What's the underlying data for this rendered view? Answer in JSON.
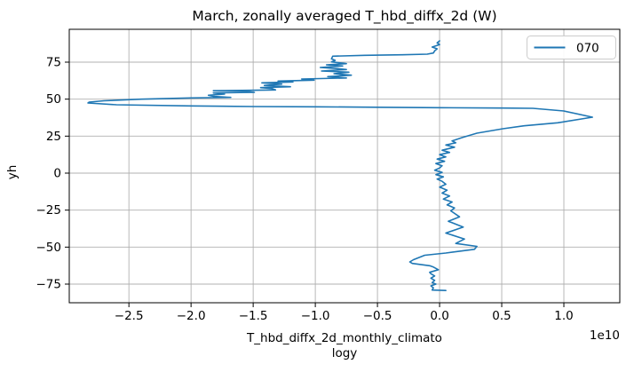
{
  "figure": {
    "title": "March, zonally averaged T_hbd_diffx_2d (W)",
    "ylabel": "yh",
    "xlabel_line1": "T_hbd_diffx_2d_monthly_climato",
    "xlabel_line2": "logy",
    "x_offset_text": "1e10",
    "legend": {
      "entries": [
        {
          "label": "070",
          "color": "#1f77b4"
        }
      ]
    }
  },
  "colors": {
    "line": "#1f77b4",
    "grid": "#b0b0b0",
    "spine": "#000000",
    "legend_border": "#cccccc",
    "background": "#ffffff"
  },
  "chart_data": {
    "type": "line",
    "title": "March, zonally averaged T_hbd_diffx_2d (W)",
    "xlabel": "T_hbd_diffx_2d_monthly_climatology",
    "ylabel": "yh",
    "x_unit": "1e10 W",
    "grid": true,
    "legend_position": "upper right",
    "xlim": [
      -2.98,
      1.45
    ],
    "ylim": [
      -87.6,
      97.2
    ],
    "x_ticks": [
      -2.5,
      -2.0,
      -1.5,
      -1.0,
      -0.5,
      0.0,
      0.5,
      1.0
    ],
    "x_tick_labels": [
      "−2.5",
      "−2.0",
      "−1.5",
      "−1.0",
      "−0.5",
      "0.0",
      "0.5",
      "1.0"
    ],
    "y_ticks": [
      75,
      50,
      25,
      0,
      -25,
      -50,
      -75
    ],
    "y_tick_labels": [
      "75",
      "50",
      "25",
      "0",
      "−25",
      "−50",
      "−75"
    ],
    "series": [
      {
        "name": "070",
        "color": "#1f77b4",
        "points": [
          [
            0.05,
            -79.3
          ],
          [
            -0.06,
            -79.0
          ],
          [
            -0.05,
            -77.5
          ],
          [
            -0.07,
            -76.2
          ],
          [
            -0.03,
            -75.0
          ],
          [
            -0.06,
            -74.0
          ],
          [
            -0.04,
            -72.5
          ],
          [
            -0.07,
            -71.0
          ],
          [
            -0.04,
            -69.5
          ],
          [
            -0.07,
            -68.0
          ],
          [
            -0.08,
            -67.0
          ],
          [
            -0.01,
            -65.3
          ],
          [
            -0.05,
            -63.5
          ],
          [
            -0.08,
            -62.6
          ],
          [
            -0.22,
            -61.0
          ],
          [
            -0.24,
            -60.0
          ],
          [
            -0.21,
            -58.5
          ],
          [
            -0.12,
            -55.5
          ],
          [
            0.05,
            -54.0
          ],
          [
            0.28,
            -51.5
          ],
          [
            0.3,
            -49.5
          ],
          [
            0.13,
            -47.5
          ],
          [
            0.2,
            -44.5
          ],
          [
            0.05,
            -40.5
          ],
          [
            0.19,
            -36.5
          ],
          [
            0.07,
            -32.5
          ],
          [
            0.16,
            -29.5
          ],
          [
            0.09,
            -25.5
          ],
          [
            0.12,
            -23.5
          ],
          [
            0.06,
            -21.5
          ],
          [
            0.1,
            -19.5
          ],
          [
            0.03,
            -17.5
          ],
          [
            0.08,
            -15.5
          ],
          [
            0.02,
            -13.5
          ],
          [
            0.06,
            -11.5
          ],
          [
            0.0,
            -9.5
          ],
          [
            0.05,
            -7.5
          ],
          [
            0.02,
            -5.5
          ],
          [
            -0.02,
            -4.0
          ],
          [
            0.03,
            -2.5
          ],
          [
            -0.03,
            -1.0
          ],
          [
            0.02,
            0.5
          ],
          [
            -0.04,
            2.0
          ],
          [
            0.0,
            3.5
          ],
          [
            0.02,
            5.0
          ],
          [
            -0.03,
            6.5
          ],
          [
            0.04,
            8.0
          ],
          [
            -0.02,
            9.5
          ],
          [
            0.05,
            11.0
          ],
          [
            0.0,
            12.5
          ],
          [
            0.08,
            14.0
          ],
          [
            0.02,
            15.5
          ],
          [
            0.12,
            17.5
          ],
          [
            0.05,
            19.0
          ],
          [
            0.13,
            20.5
          ],
          [
            0.1,
            21.8
          ],
          [
            0.18,
            24.0
          ],
          [
            0.3,
            27.0
          ],
          [
            0.51,
            30.0
          ],
          [
            0.68,
            32.0
          ],
          [
            0.95,
            34.0
          ],
          [
            1.23,
            37.8
          ],
          [
            1.0,
            42.0
          ],
          [
            0.75,
            43.8
          ],
          [
            0.5,
            44.0
          ],
          [
            0.0,
            44.2
          ],
          [
            -0.5,
            44.5
          ],
          [
            -1.0,
            44.8
          ],
          [
            -1.5,
            45.0
          ],
          [
            -2.0,
            45.4
          ],
          [
            -2.6,
            46.2
          ],
          [
            -2.83,
            47.4
          ],
          [
            -2.82,
            48.0
          ],
          [
            -2.7,
            48.9
          ],
          [
            -2.4,
            50.0
          ],
          [
            -2.0,
            50.8
          ],
          [
            -1.68,
            51.2
          ],
          [
            -1.81,
            51.8
          ],
          [
            -1.86,
            52.6
          ],
          [
            -1.73,
            53.4
          ],
          [
            -1.82,
            54.2
          ],
          [
            -1.49,
            54.6
          ],
          [
            -1.55,
            55.2
          ],
          [
            -1.82,
            55.7
          ],
          [
            -1.32,
            56.2
          ],
          [
            -1.35,
            57.2
          ],
          [
            -1.44,
            57.8
          ],
          [
            -1.2,
            58.4
          ],
          [
            -1.41,
            59.2
          ],
          [
            -1.27,
            60.2
          ],
          [
            -1.43,
            61.0
          ],
          [
            -1.18,
            61.6
          ],
          [
            -1.3,
            62.2
          ],
          [
            -1.01,
            62.8
          ],
          [
            -1.11,
            63.6
          ],
          [
            -0.75,
            64.3
          ],
          [
            -0.9,
            65.2
          ],
          [
            -0.71,
            66.2
          ],
          [
            -0.85,
            67.2
          ],
          [
            -0.73,
            68.2
          ],
          [
            -0.95,
            69.0
          ],
          [
            -0.75,
            70.0
          ],
          [
            -0.82,
            70.6
          ],
          [
            -0.96,
            71.4
          ],
          [
            -0.78,
            72.4
          ],
          [
            -0.91,
            73.2
          ],
          [
            -0.75,
            74.0
          ],
          [
            -0.87,
            75.2
          ],
          [
            -0.84,
            76.2
          ],
          [
            -0.87,
            77.2
          ],
          [
            -0.86,
            79.0
          ],
          [
            -0.6,
            79.6
          ],
          [
            -0.3,
            80.0
          ],
          [
            -0.1,
            80.4
          ],
          [
            -0.05,
            81.2
          ],
          [
            -0.04,
            82.6
          ],
          [
            -0.02,
            84.0
          ],
          [
            -0.06,
            85.2
          ],
          [
            0.0,
            86.8
          ],
          [
            -0.02,
            88.0
          ],
          [
            0.0,
            89.4
          ]
        ]
      }
    ]
  }
}
